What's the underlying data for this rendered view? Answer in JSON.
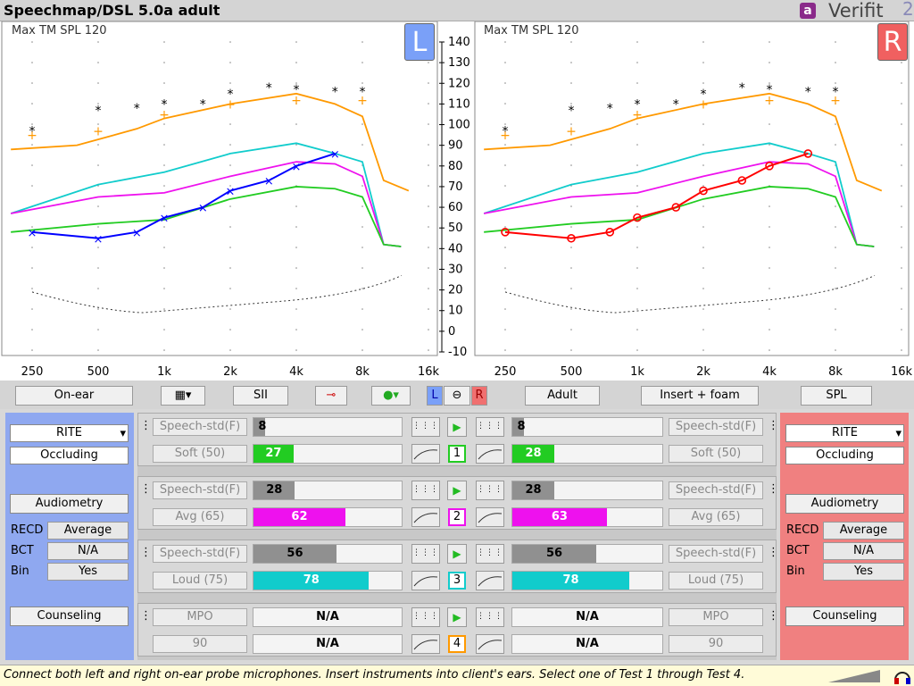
{
  "app": {
    "title": "Speechmap/DSL 5.0a adult",
    "brand_logo": "a",
    "brand": "Verifit",
    "brand_version": "2"
  },
  "graph": {
    "y_axis": {
      "range": [
        -10,
        140
      ],
      "ticks": [
        140,
        130,
        120,
        110,
        100,
        90,
        80,
        70,
        60,
        50,
        40,
        30,
        20,
        10,
        0,
        -10
      ]
    },
    "x_axis": {
      "freqs": [
        250,
        500,
        1000,
        2000,
        4000,
        8000,
        16000
      ],
      "ticks": [
        "250",
        "500",
        "1k",
        "2k",
        "4k",
        "8k",
        "16k"
      ]
    },
    "left": {
      "header": "Max TM SPL 120",
      "ear_label": "L"
    },
    "right": {
      "header": "Max TM SPL 120",
      "ear_label": "R"
    }
  },
  "toolbar": {
    "probe": "On-ear",
    "sii": "SII",
    "l_label": "L",
    "r_label": "R",
    "link_icon": "link-icon",
    "mode": "Adult",
    "transducer": "Insert + foam",
    "scale": "SPL"
  },
  "left_side": {
    "style": "RITE",
    "vent": "Occluding",
    "audiometry": "Audiometry",
    "recd_label": "RECD",
    "recd_value": "Average",
    "bct_label": "BCT",
    "bct_value": "N/A",
    "bin_label": "Bin",
    "bin_value": "Yes",
    "counseling": "Counseling"
  },
  "right_side": {
    "style": "RITE",
    "vent": "Occluding",
    "audiometry": "Audiometry",
    "recd_label": "RECD",
    "recd_value": "Average",
    "bct_label": "BCT",
    "bct_value": "N/A",
    "bin_label": "Bin",
    "bin_value": "Yes",
    "counseling": "Counseling"
  },
  "tests": [
    {
      "num": "1",
      "color": "#22cc22",
      "stim": "Speech-std(F)",
      "level": "Soft (50)",
      "l_top": "8",
      "l_bot": "27",
      "r_top": "8",
      "r_bot": "28",
      "l_top_pct": 0.08,
      "l_bot_pct": 0.27,
      "r_top_pct": 0.08,
      "r_bot_pct": 0.28
    },
    {
      "num": "2",
      "color": "#ee11ee",
      "stim": "Speech-std(F)",
      "level": "Avg (65)",
      "l_top": "28",
      "l_bot": "62",
      "r_top": "28",
      "r_bot": "63",
      "l_top_pct": 0.28,
      "l_bot_pct": 0.62,
      "r_top_pct": 0.28,
      "r_bot_pct": 0.63
    },
    {
      "num": "3",
      "color": "#11cccc",
      "stim": "Speech-std(F)",
      "level": "Loud (75)",
      "l_top": "56",
      "l_bot": "78",
      "r_top": "56",
      "r_bot": "78",
      "l_top_pct": 0.56,
      "l_bot_pct": 0.78,
      "r_top_pct": 0.56,
      "r_bot_pct": 0.78
    },
    {
      "num": "4",
      "color": "#ff9900",
      "stim": "MPO",
      "level": "90",
      "l_top": "N/A",
      "l_bot": "N/A",
      "r_top": "N/A",
      "r_bot": "N/A",
      "l_top_pct": 0,
      "l_bot_pct": 0,
      "r_top_pct": 0,
      "r_bot_pct": 0
    }
  ],
  "status": "Connect both left and right on-ear probe microphones.  Insert instruments into client's ears.  Select one of Test 1 through Test 4.",
  "icons": [
    "volume-ramp-icon",
    "headphones-icon",
    "play-icon",
    "menu-dots-icon",
    "audiogram-icon",
    "probe-icon",
    "globe-icon"
  ],
  "chart_data": {
    "type": "line",
    "xscale": "log",
    "x": [
      250,
      500,
      750,
      1000,
      1500,
      2000,
      3000,
      4000,
      6000,
      8000
    ],
    "ylim": [
      -10,
      140
    ],
    "series": [
      {
        "ear": "left",
        "color": "#0000ff",
        "values": [
          48,
          45,
          48,
          55,
          60,
          68,
          73,
          80,
          86,
          null
        ]
      },
      {
        "ear": "right",
        "color": "#ff0000",
        "values": [
          48,
          45,
          48,
          55,
          60,
          68,
          73,
          80,
          86,
          null
        ]
      }
    ]
  }
}
